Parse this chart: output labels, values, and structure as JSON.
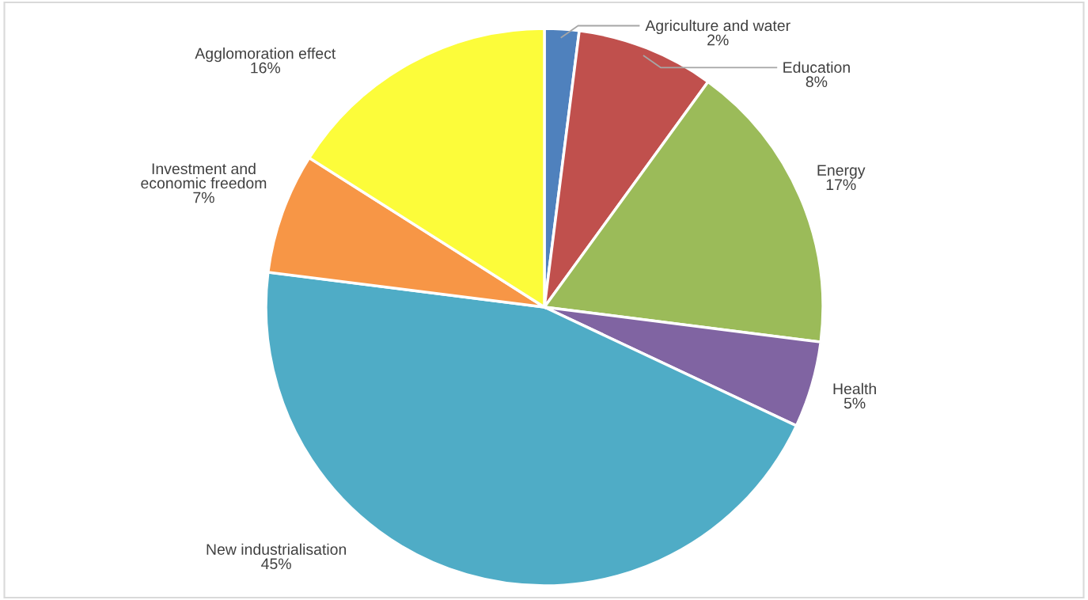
{
  "chart_data": {
    "type": "pie",
    "categories": [
      "Agriculture and water",
      "Education",
      "Energy",
      "Health",
      "New industrialisation",
      "Investment and\neconomic freedom",
      "Agglomoration effect"
    ],
    "values": [
      2,
      8,
      17,
      5,
      45,
      7,
      16
    ],
    "value_labels": [
      "2%",
      "8%",
      "17%",
      "5%",
      "45%",
      "7%",
      "16%"
    ],
    "colors": [
      "#4f81bd",
      "#c0504d",
      "#9bbb59",
      "#8064a2",
      "#4facc6",
      "#f79646",
      "#fcfc3a"
    ],
    "legend": false
  }
}
